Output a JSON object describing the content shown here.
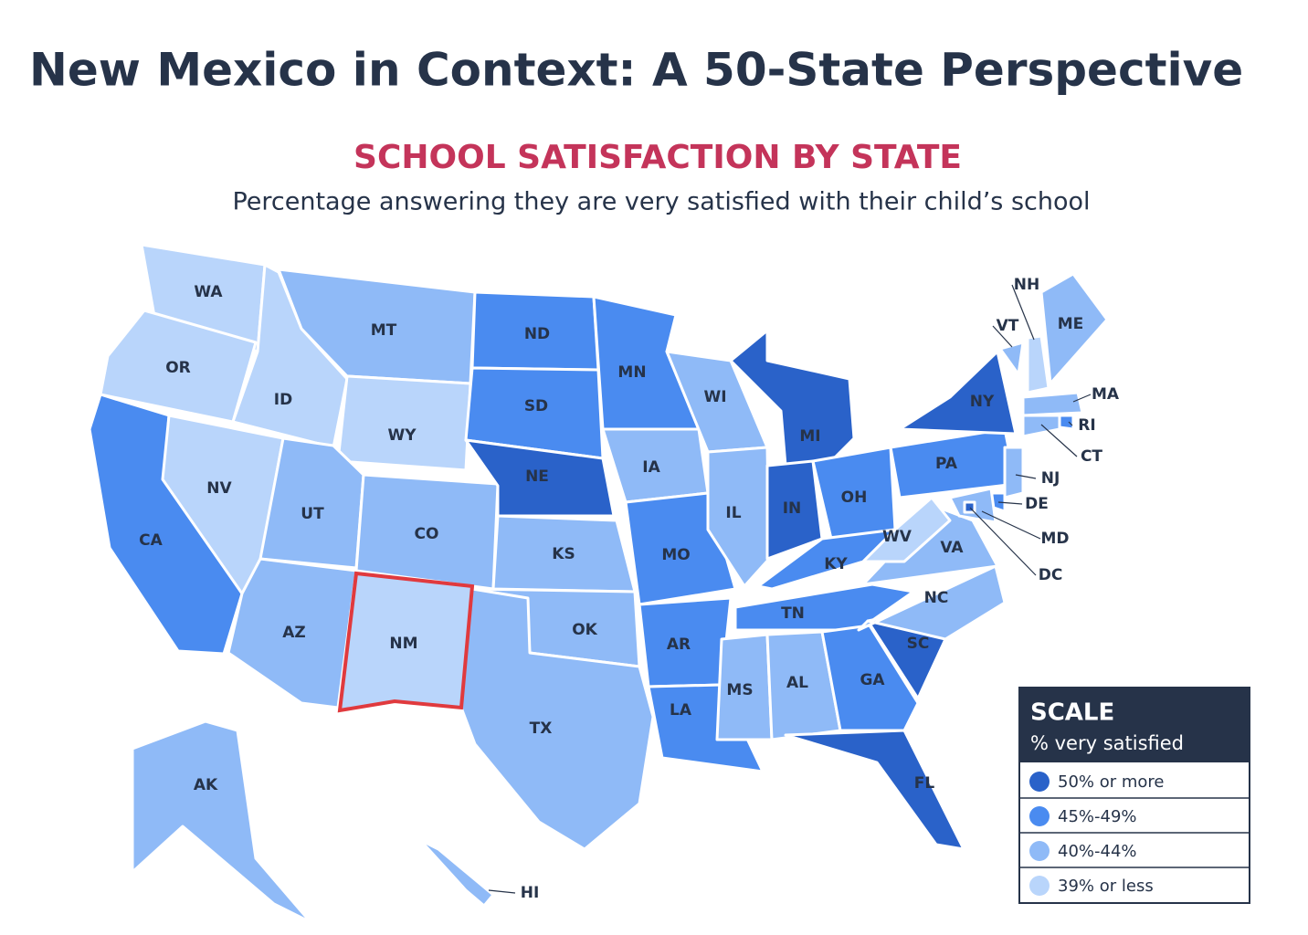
{
  "header": {
    "title": "New Mexico in Context: A 50-State Perspective"
  },
  "map": {
    "title": "SCHOOL SATISFACTION BY STATE",
    "subtitle": "Percentage answering they are very satisfied with their child’s school",
    "highlight_color": "#e03a3e",
    "states": [
      {
        "label": "WA",
        "color": "#b9d5fb"
      },
      {
        "label": "OR",
        "color": "#b9d5fb"
      },
      {
        "label": "CA",
        "color": "#4a8bf0"
      },
      {
        "label": "NV",
        "color": "#b9d5fb"
      },
      {
        "label": "ID",
        "color": "#b9d5fb"
      },
      {
        "label": "MT",
        "color": "#8fbaf7"
      },
      {
        "label": "WY",
        "color": "#b9d5fb"
      },
      {
        "label": "UT",
        "color": "#8fbaf7"
      },
      {
        "label": "CO",
        "color": "#8fbaf7"
      },
      {
        "label": "AZ",
        "color": "#8fbaf7"
      },
      {
        "label": "NM",
        "color": "#b9d5fb",
        "highlighted": true
      },
      {
        "label": "ND",
        "color": "#4a8bf0"
      },
      {
        "label": "SD",
        "color": "#4a8bf0"
      },
      {
        "label": "NE",
        "color": "#2a62c9"
      },
      {
        "label": "KS",
        "color": "#8fbaf7"
      },
      {
        "label": "OK",
        "color": "#8fbaf7"
      },
      {
        "label": "TX",
        "color": "#8fbaf7"
      },
      {
        "label": "MN",
        "color": "#4a8bf0"
      },
      {
        "label": "IA",
        "color": "#8fbaf7"
      },
      {
        "label": "MO",
        "color": "#4a8bf0"
      },
      {
        "label": "AR",
        "color": "#4a8bf0"
      },
      {
        "label": "LA",
        "color": "#4a8bf0"
      },
      {
        "label": "WI",
        "color": "#8fbaf7"
      },
      {
        "label": "IL",
        "color": "#8fbaf7"
      },
      {
        "label": "MI",
        "color": "#2a62c9"
      },
      {
        "label": "IN",
        "color": "#2a62c9"
      },
      {
        "label": "OH",
        "color": "#4a8bf0"
      },
      {
        "label": "KY",
        "color": "#4a8bf0"
      },
      {
        "label": "TN",
        "color": "#4a8bf0"
      },
      {
        "label": "MS",
        "color": "#8fbaf7"
      },
      {
        "label": "AL",
        "color": "#8fbaf7"
      },
      {
        "label": "GA",
        "color": "#4a8bf0"
      },
      {
        "label": "FL",
        "color": "#2a62c9"
      },
      {
        "label": "SC",
        "color": "#2a62c9"
      },
      {
        "label": "NC",
        "color": "#8fbaf7"
      },
      {
        "label": "VA",
        "color": "#8fbaf7"
      },
      {
        "label": "WV",
        "color": "#b9d5fb"
      },
      {
        "label": "PA",
        "color": "#4a8bf0"
      },
      {
        "label": "NY",
        "color": "#2a62c9"
      },
      {
        "label": "VT",
        "color": "#8fbaf7"
      },
      {
        "label": "NH",
        "color": "#b9d5fb"
      },
      {
        "label": "ME",
        "color": "#8fbaf7"
      },
      {
        "label": "MA",
        "color": "#8fbaf7"
      },
      {
        "label": "RI",
        "color": "#4a8bf0"
      },
      {
        "label": "CT",
        "color": "#8fbaf7"
      },
      {
        "label": "NJ",
        "color": "#8fbaf7"
      },
      {
        "label": "DE",
        "color": "#4a8bf0"
      },
      {
        "label": "MD",
        "color": "#8fbaf7"
      },
      {
        "label": "DC",
        "color": "#2a62c9"
      },
      {
        "label": "AK",
        "color": "#8fbaf7"
      },
      {
        "label": "HI",
        "color": "#8fbaf7"
      }
    ]
  },
  "legend": {
    "title": "SCALE",
    "subtitle": "% very satisfied",
    "items": [
      {
        "label": "50% or more",
        "color": "#2a62c9"
      },
      {
        "label": "45%-49%",
        "color": "#4a8bf0"
      },
      {
        "label": "40%-44%",
        "color": "#8fbaf7"
      },
      {
        "label": "39% or less",
        "color": "#b9d5fb"
      }
    ]
  }
}
